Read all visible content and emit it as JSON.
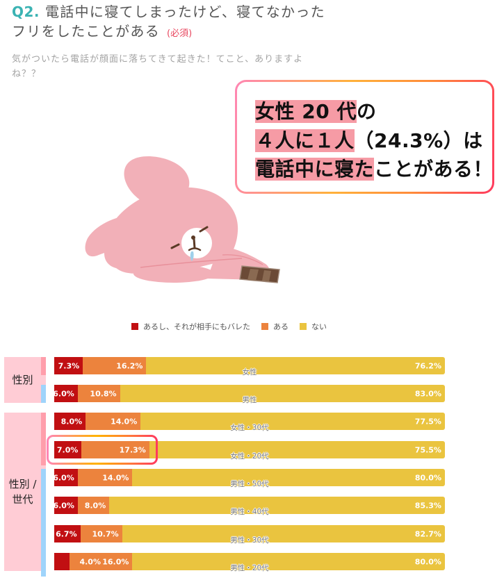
{
  "question": {
    "number": "Q2.",
    "title_lines": [
      "電話中に寝てしまったけど、寝てなかった",
      "フリをしたことがある"
    ],
    "required_label": "(必須)",
    "description_lines": [
      "気がついたら電話が顔面に落ちてきて起きた！てこと、ありますよ",
      "ね？？"
    ]
  },
  "callout": {
    "lines": [
      {
        "highlight": "女性 20 代",
        "rest": "の"
      },
      {
        "highlight": "４人に１人",
        "rest": "（24.3%）は"
      },
      {
        "highlight": "電話中に寝た",
        "rest": "ことがある！"
      }
    ]
  },
  "illustration": "sleeping-pink-rabbit-with-phone",
  "colors": {
    "accent_teal": "#3bb3b3",
    "required_red": "#e8475f",
    "callout_highlight": "#f69ba5",
    "group_box": "#ffccd5"
  },
  "chart_data": {
    "type": "bar",
    "orientation": "horizontal",
    "stacked": true,
    "percent": true,
    "title": "",
    "xlabel": "",
    "ylabel": "",
    "xlim": [
      0,
      100
    ],
    "grid": false,
    "legend_position": "top",
    "legend": [
      "あるし、それが相手にもバレた",
      "ある",
      "ない"
    ],
    "categories": [
      "女性",
      "男性",
      "女性・30代",
      "女性・20代",
      "男性・50代",
      "男性・40代",
      "男性・30代",
      "男性・20代"
    ],
    "genders": [
      "female",
      "male",
      "female",
      "female",
      "male",
      "male",
      "male",
      "male"
    ],
    "stripe_colors": {
      "female": "#ff9eab",
      "male": "#9fd4fb"
    },
    "groups": [
      {
        "label_lines": [
          "性別"
        ],
        "rows": [
          0,
          1
        ]
      },
      {
        "label_lines": [
          "性別 /",
          "世代"
        ],
        "rows": [
          2,
          3,
          4,
          5,
          6,
          7
        ]
      }
    ],
    "series": [
      {
        "name": "あるし、それが相手にもバレた",
        "color": "#c10f12",
        "values": [
          7.3,
          6.0,
          8.0,
          7.0,
          6.0,
          6.0,
          6.7,
          4.0
        ],
        "labels": [
          "7.3%",
          "6.0%",
          "8.0%",
          "7.0%",
          "6.0%",
          "6.0%",
          "6.7%",
          "4.0%"
        ]
      },
      {
        "name": "ある",
        "color": "#ec833d",
        "values": [
          16.2,
          10.8,
          14.0,
          17.3,
          14.0,
          8.0,
          10.7,
          16.0
        ],
        "labels": [
          "16.2%",
          "10.8%",
          "14.0%",
          "17.3%",
          "14.0%",
          "8.0%",
          "10.7%",
          "16.0%"
        ]
      },
      {
        "name": "ない",
        "color": "#eac43f",
        "values": [
          76.2,
          83.0,
          77.5,
          75.5,
          80.0,
          85.3,
          82.7,
          80.0
        ],
        "labels": [
          "76.2%",
          "83.0%",
          "77.5%",
          "75.5%",
          "80.0%",
          "85.3%",
          "82.7%",
          "80.0%"
        ]
      }
    ],
    "highlighted_row": 3
  }
}
